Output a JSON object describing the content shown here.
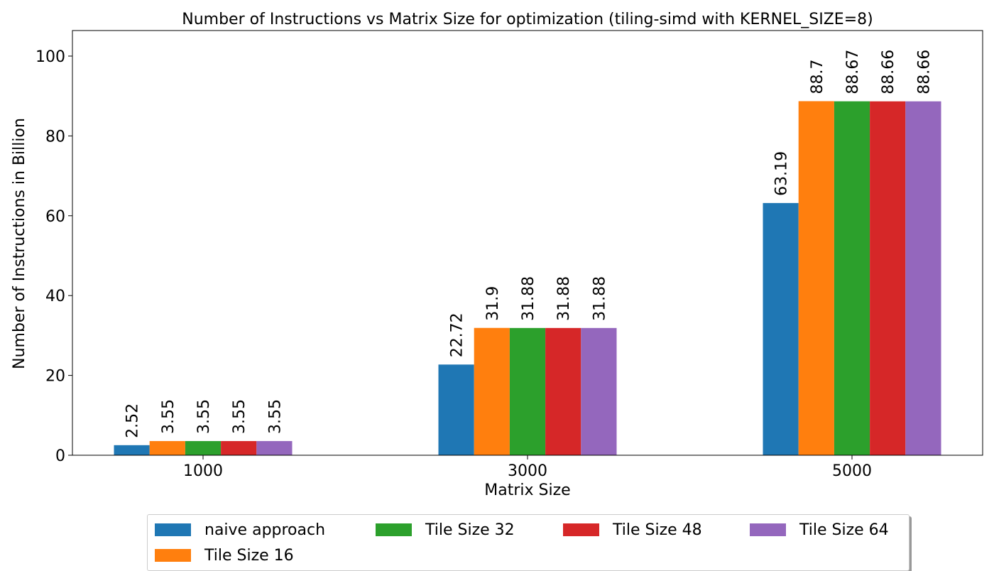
{
  "chart_data": {
    "type": "bar",
    "title": "Number of Instructions vs Matrix Size for optimization (tiling-simd with KERNEL_SIZE=8)",
    "xlabel": "Matrix Size",
    "ylabel": "Number of Instructions in Billion",
    "categories": [
      "1000",
      "3000",
      "5000"
    ],
    "ylim": [
      0,
      106.4
    ],
    "yticks": [
      "0",
      "20",
      "40",
      "60",
      "80",
      "100"
    ],
    "grid": false,
    "legend_position": "bottom-center",
    "series": [
      {
        "name": "naive approach",
        "color": "#1f77b4",
        "values": [
          2.52,
          22.72,
          63.19
        ],
        "labels": [
          "2.52",
          "22.72",
          "63.19"
        ]
      },
      {
        "name": "Tile Size 16",
        "color": "#ff7f0e",
        "values": [
          3.55,
          31.9,
          88.7
        ],
        "labels": [
          "3.55",
          "31.9",
          "88.7"
        ]
      },
      {
        "name": "Tile Size 32",
        "color": "#2ca02c",
        "values": [
          3.55,
          31.88,
          88.67
        ],
        "labels": [
          "3.55",
          "31.88",
          "88.67"
        ]
      },
      {
        "name": "Tile Size 48",
        "color": "#d62728",
        "values": [
          3.55,
          31.88,
          88.66
        ],
        "labels": [
          "3.55",
          "31.88",
          "88.66"
        ]
      },
      {
        "name": "Tile Size 64",
        "color": "#9467bd",
        "values": [
          3.55,
          31.88,
          88.66
        ],
        "labels": [
          "3.55",
          "31.88",
          "88.66"
        ]
      }
    ]
  }
}
